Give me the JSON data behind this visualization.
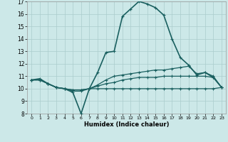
{
  "title": "",
  "xlabel": "Humidex (Indice chaleur)",
  "ylabel": "",
  "xlim": [
    -0.5,
    23.5
  ],
  "ylim": [
    8,
    17
  ],
  "yticks": [
    8,
    9,
    10,
    11,
    12,
    13,
    14,
    15,
    16,
    17
  ],
  "xticks": [
    0,
    1,
    2,
    3,
    4,
    5,
    6,
    7,
    8,
    9,
    10,
    11,
    12,
    13,
    14,
    15,
    16,
    17,
    18,
    19,
    20,
    21,
    22,
    23
  ],
  "background_color": "#cce8e8",
  "grid_color": "#aacccc",
  "line_color": "#1a6060",
  "lines": [
    {
      "x": [
        0,
        1,
        2,
        3,
        4,
        5,
        6,
        7,
        8,
        9,
        10,
        11,
        12,
        13,
        14,
        15,
        16,
        17,
        18,
        19,
        20,
        21,
        22,
        23
      ],
      "y": [
        10.7,
        10.8,
        10.4,
        10.1,
        10.0,
        9.7,
        8.0,
        10.0,
        11.3,
        12.9,
        13.0,
        15.8,
        16.4,
        17.0,
        16.8,
        16.5,
        15.9,
        14.0,
        12.5,
        11.9,
        11.1,
        11.3,
        10.9,
        10.1
      ]
    },
    {
      "x": [
        0,
        1,
        2,
        3,
        4,
        5,
        6,
        7,
        8,
        9,
        10,
        11,
        12,
        13,
        14,
        15,
        16,
        17,
        18,
        19,
        20,
        21,
        22,
        23
      ],
      "y": [
        10.7,
        10.7,
        10.4,
        10.1,
        10.0,
        9.8,
        9.8,
        10.0,
        10.3,
        10.7,
        11.0,
        11.1,
        11.2,
        11.3,
        11.4,
        11.5,
        11.5,
        11.6,
        11.7,
        11.8,
        11.2,
        11.3,
        11.0,
        10.1
      ]
    },
    {
      "x": [
        0,
        1,
        2,
        3,
        4,
        5,
        6,
        7,
        8,
        9,
        10,
        11,
        12,
        13,
        14,
        15,
        16,
        17,
        18,
        19,
        20,
        21,
        22,
        23
      ],
      "y": [
        10.7,
        10.7,
        10.4,
        10.1,
        10.0,
        9.9,
        9.9,
        10.0,
        10.2,
        10.4,
        10.5,
        10.7,
        10.8,
        10.9,
        10.9,
        10.9,
        11.0,
        11.0,
        11.0,
        11.0,
        11.0,
        11.0,
        10.9,
        10.1
      ]
    },
    {
      "x": [
        0,
        1,
        2,
        3,
        4,
        5,
        6,
        7,
        8,
        9,
        10,
        11,
        12,
        13,
        14,
        15,
        16,
        17,
        18,
        19,
        20,
        21,
        22,
        23
      ],
      "y": [
        10.7,
        10.7,
        10.4,
        10.1,
        10.0,
        9.9,
        9.9,
        10.0,
        10.0,
        10.0,
        10.0,
        10.0,
        10.0,
        10.0,
        10.0,
        10.0,
        10.0,
        10.0,
        10.0,
        10.0,
        10.0,
        10.0,
        10.0,
        10.1
      ]
    }
  ]
}
